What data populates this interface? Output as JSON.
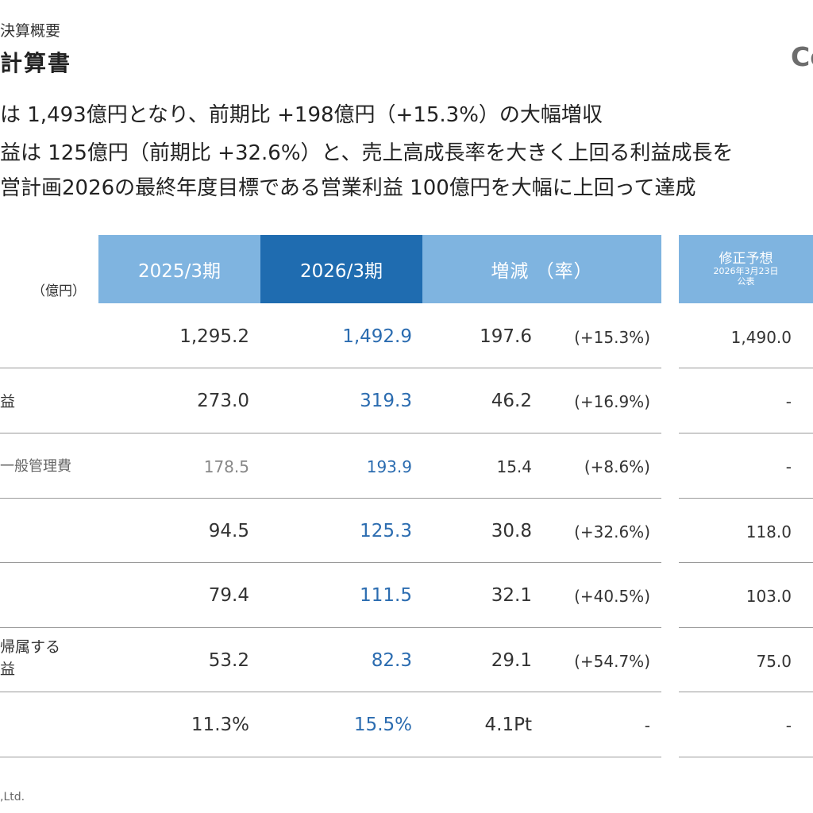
{
  "header": {
    "subtitle": "決算概要",
    "title": "計算書",
    "logo": "Co"
  },
  "bullets": [
    "は 1,493億円となり、前期比 +198億円（+15.3%）の大幅増収",
    "益は 125億円（前期比 +32.6%）と、売上高成長率を大きく上回る利益成長を",
    "営計画2026の最終年度目標である営業利益 100億円を大幅に上回って達成"
  ],
  "table": {
    "unit_label": "（億円）",
    "columns": {
      "prev": "2025/3期",
      "curr": "2026/3期",
      "change": "増減 （率）",
      "forecast_main": "修正予想",
      "forecast_sub1": "2026年3月23日",
      "forecast_sub2": "公表"
    },
    "rows": [
      {
        "label": "",
        "prev": "1,295.2",
        "curr": "1,492.9",
        "diff": "197.6",
        "rate": "(+15.3%)",
        "forecast": "1,490.0"
      },
      {
        "label": "益",
        "prev": "273.0",
        "curr": "319.3",
        "diff": "46.2",
        "rate": "(+16.9%)",
        "forecast": "-"
      },
      {
        "label": "一般管理費",
        "prev": "178.5",
        "curr": "193.9",
        "diff": "15.4",
        "rate": "(+8.6%)",
        "forecast": "-"
      },
      {
        "label": "",
        "prev": "94.5",
        "curr": "125.3",
        "diff": "30.8",
        "rate": "(+32.6%)",
        "forecast": "118.0"
      },
      {
        "label": "",
        "prev": "79.4",
        "curr": "111.5",
        "diff": "32.1",
        "rate": "(+40.5%)",
        "forecast": "103.0"
      },
      {
        "label": "帰属する",
        "label2": "益",
        "prev": "53.2",
        "curr": "82.3",
        "diff": "29.1",
        "rate": "(+54.7%)",
        "forecast": "75.0"
      },
      {
        "label": "",
        "prev": "11.3%",
        "curr": "15.5%",
        "diff": "4.1Pt",
        "rate": "-",
        "forecast": "-"
      }
    ]
  },
  "footer": ",Ltd."
}
